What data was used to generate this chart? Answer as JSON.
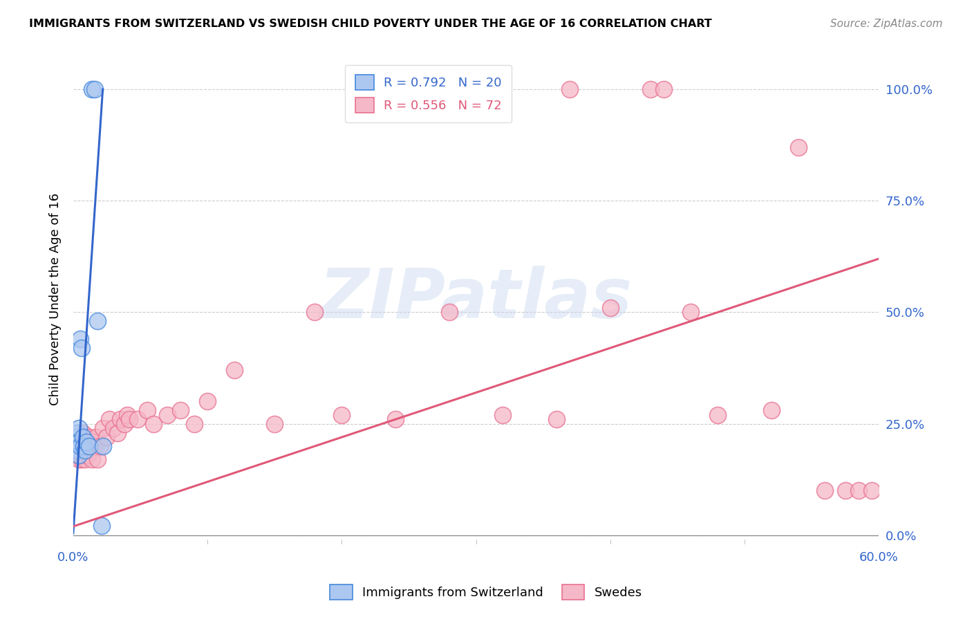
{
  "title": "IMMIGRANTS FROM SWITZERLAND VS SWEDISH CHILD POVERTY UNDER THE AGE OF 16 CORRELATION CHART",
  "source": "Source: ZipAtlas.com",
  "ylabel": "Child Poverty Under the Age of 16",
  "legend_blue_r": "R = 0.792",
  "legend_blue_n": "N = 20",
  "legend_pink_r": "R = 0.556",
  "legend_pink_n": "N = 72",
  "legend_blue_label": "Immigrants from Switzerland",
  "legend_pink_label": "Swedes",
  "watermark": "ZIPatlas",
  "blue_color": "#adc8f0",
  "blue_edge_color": "#4488dd",
  "blue_line_color": "#3366cc",
  "pink_color": "#f5b8c8",
  "pink_edge_color": "#e87090",
  "pink_line_color": "#e05878",
  "right_yticks": [
    0.0,
    0.25,
    0.5,
    0.75,
    1.0
  ],
  "right_yticklabels": [
    "0.0%",
    "25.0%",
    "50.0%",
    "75.0%",
    "100.0%"
  ],
  "xlim": [
    0.0,
    0.6
  ],
  "ylim": [
    -0.02,
    1.08
  ],
  "blue_scatter_x": [
    0.0015,
    0.002,
    0.003,
    0.003,
    0.004,
    0.004,
    0.004,
    0.005,
    0.005,
    0.006,
    0.007,
    0.008,
    0.009,
    0.01,
    0.012,
    0.014,
    0.016,
    0.021,
    0.022,
    0.018
  ],
  "blue_scatter_y": [
    0.2,
    0.22,
    0.19,
    0.23,
    0.21,
    0.18,
    0.24,
    0.2,
    0.44,
    0.42,
    0.22,
    0.2,
    0.19,
    0.21,
    0.2,
    1.0,
    1.0,
    0.022,
    0.2,
    0.48
  ],
  "pink_scatter_x": [
    0.001,
    0.002,
    0.002,
    0.003,
    0.003,
    0.003,
    0.004,
    0.004,
    0.004,
    0.005,
    0.005,
    0.005,
    0.005,
    0.006,
    0.006,
    0.006,
    0.007,
    0.007,
    0.007,
    0.008,
    0.008,
    0.008,
    0.009,
    0.009,
    0.01,
    0.01,
    0.011,
    0.012,
    0.012,
    0.013,
    0.014,
    0.015,
    0.016,
    0.017,
    0.018,
    0.02,
    0.022,
    0.025,
    0.027,
    0.03,
    0.033,
    0.035,
    0.038,
    0.04,
    0.042,
    0.048,
    0.055,
    0.06,
    0.07,
    0.08,
    0.09,
    0.1,
    0.12,
    0.15,
    0.18,
    0.2,
    0.24,
    0.28,
    0.32,
    0.36,
    0.37,
    0.4,
    0.43,
    0.44,
    0.46,
    0.48,
    0.52,
    0.54,
    0.56,
    0.575,
    0.585,
    0.595
  ],
  "pink_scatter_y": [
    0.2,
    0.19,
    0.21,
    0.18,
    0.22,
    0.2,
    0.17,
    0.21,
    0.19,
    0.2,
    0.18,
    0.22,
    0.21,
    0.19,
    0.17,
    0.22,
    0.2,
    0.18,
    0.23,
    0.2,
    0.18,
    0.22,
    0.17,
    0.21,
    0.19,
    0.22,
    0.18,
    0.2,
    0.22,
    0.19,
    0.17,
    0.21,
    0.2,
    0.22,
    0.17,
    0.2,
    0.24,
    0.22,
    0.26,
    0.24,
    0.23,
    0.26,
    0.25,
    0.27,
    0.26,
    0.26,
    0.28,
    0.25,
    0.27,
    0.28,
    0.25,
    0.3,
    0.37,
    0.25,
    0.5,
    0.27,
    0.26,
    0.5,
    0.27,
    0.26,
    1.0,
    0.51,
    1.0,
    1.0,
    0.5,
    0.27,
    0.28,
    0.87,
    0.1,
    0.1,
    0.1,
    0.1
  ],
  "blue_trend_x": [
    0.0,
    0.022
  ],
  "blue_trend_y": [
    0.005,
    1.0
  ],
  "pink_trend_x": [
    0.0,
    0.6
  ],
  "pink_trend_y": [
    0.02,
    0.62
  ]
}
